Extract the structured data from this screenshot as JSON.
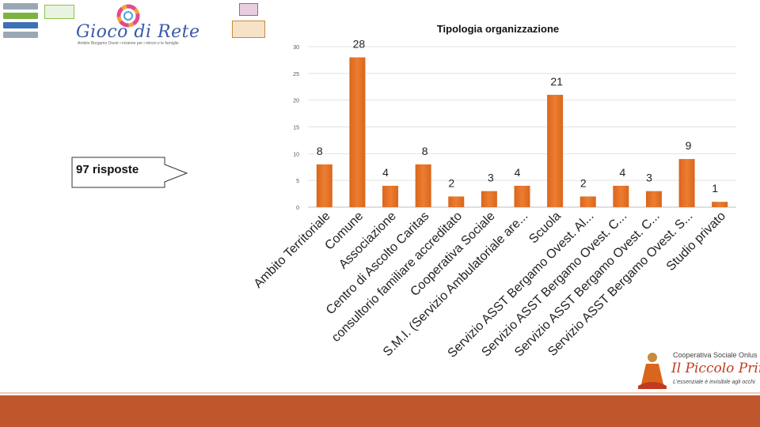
{
  "header": {
    "brand_title": "Gioco di Rete",
    "brand_subtitle": "Ambito Bergamo Ovest • insieme per i minori e le famiglie"
  },
  "callout": {
    "text": "97 risposte"
  },
  "footer_logo": {
    "small_text": "Cooperativa Sociale Onlus",
    "name": "Il Piccolo Principe",
    "tagline": "L'essenziale è invisibile agli occhi"
  },
  "colors": {
    "bar": "#ed7d31",
    "bar_dark": "#d9661c",
    "accent_bar": "#c0562b"
  },
  "chart_data": {
    "type": "bar",
    "title": "Tipologia organizzazione",
    "xlabel": "",
    "ylabel": "",
    "ylim": [
      0,
      30
    ],
    "yticks": [
      0,
      5,
      10,
      15,
      20,
      25,
      30
    ],
    "categories": [
      "Ambito Territoriale",
      "Comune",
      "Associazione",
      "Centro di Ascolto Caritas",
      "consultorio familiare accreditato",
      "Cooperativa Sociale",
      "S.M.I. (Servizio Ambulatoriale are...",
      "Scuola",
      "Servizio ASST Bergamo Ovest. Al...",
      "Servizio ASST Bergamo Ovest. C...",
      "Servizio ASST Bergamo Ovest. C...",
      "Servizio ASST Bergamo Ovest. S...",
      "Studio privato"
    ],
    "values": [
      8,
      28,
      4,
      8,
      2,
      3,
      4,
      21,
      2,
      4,
      3,
      9,
      1
    ]
  }
}
